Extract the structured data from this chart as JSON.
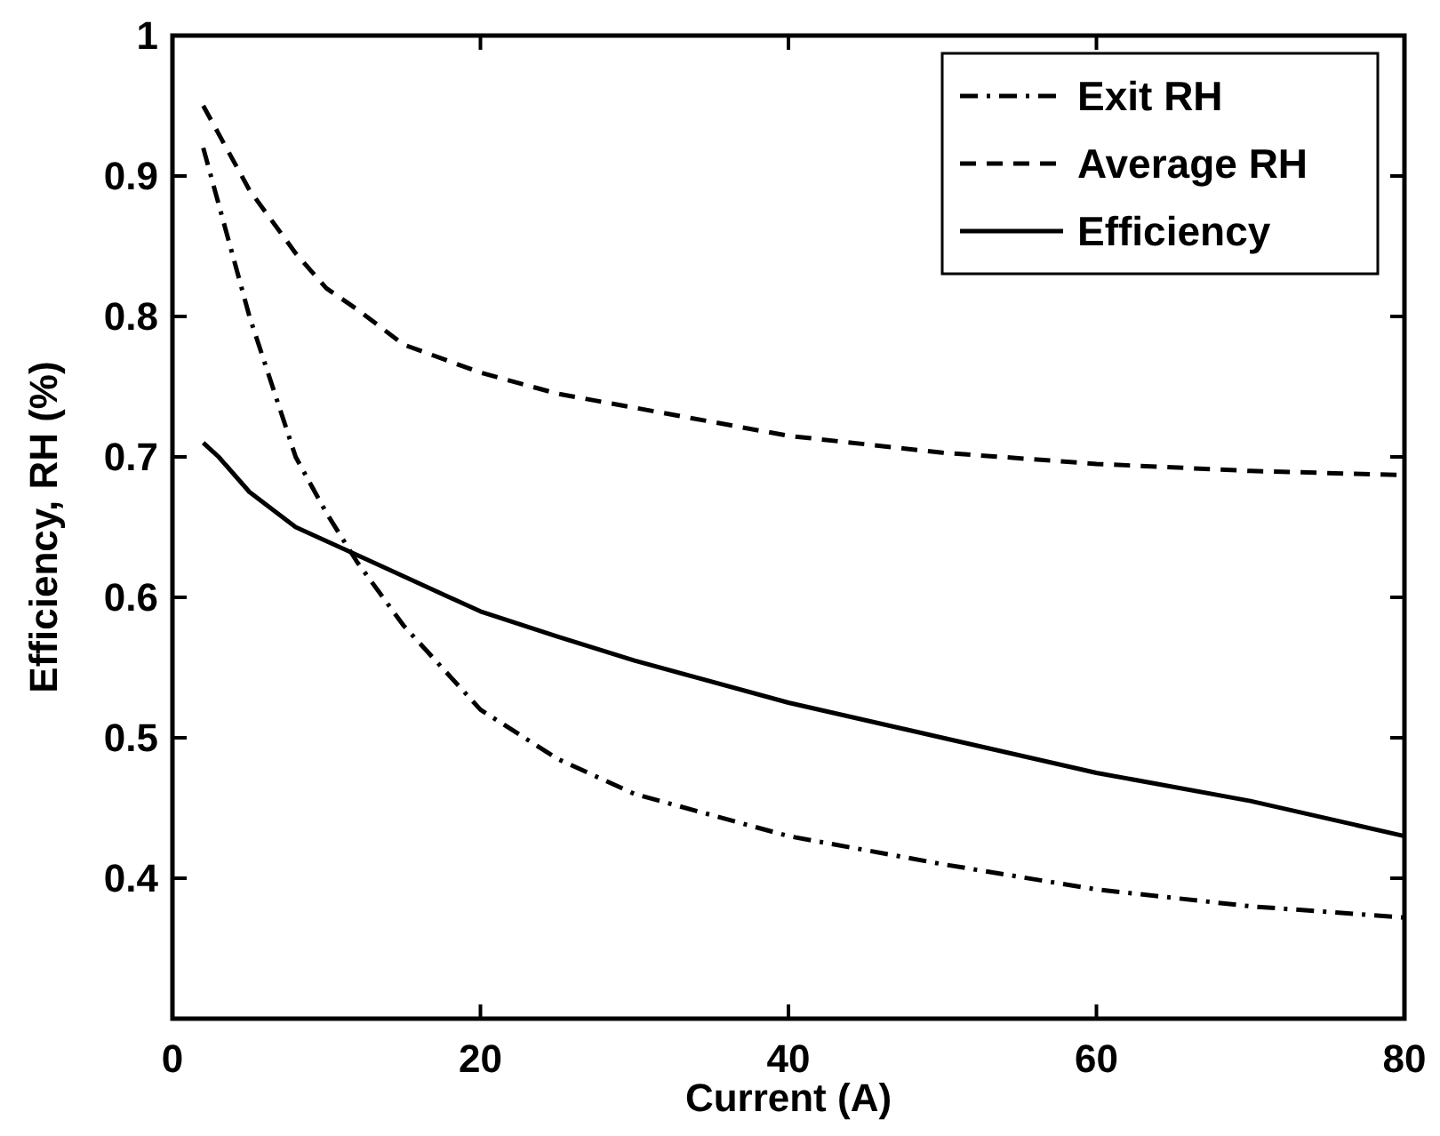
{
  "chart_data": {
    "type": "line",
    "xlabel": "Current (A)",
    "ylabel": "Efficiency, RH (%)",
    "xlim": [
      0,
      80
    ],
    "xticks": [
      0,
      20,
      40,
      60,
      80
    ],
    "ylim": [
      0.3,
      1
    ],
    "yticks": [
      0.4,
      0.5,
      0.6,
      0.7,
      0.8,
      0.9,
      1
    ],
    "legend": "top right",
    "grid": false,
    "x": [
      2,
      3,
      5,
      8,
      10,
      12,
      15,
      20,
      25,
      30,
      40,
      50,
      60,
      70,
      80
    ],
    "series": [
      {
        "name": "Exit RH",
        "color": "#000000",
        "line_style": "dashdot",
        "values": [
          0.92,
          0.88,
          0.8,
          0.7,
          0.66,
          0.625,
          0.58,
          0.52,
          0.485,
          0.46,
          0.43,
          0.41,
          0.392,
          0.38,
          0.372
        ]
      },
      {
        "name": "Average RH",
        "color": "#000000",
        "line_style": "dashed",
        "values": [
          0.95,
          0.93,
          0.89,
          0.845,
          0.82,
          0.805,
          0.78,
          0.76,
          0.745,
          0.735,
          0.715,
          0.703,
          0.695,
          0.69,
          0.687
        ]
      },
      {
        "name": "Efficiency",
        "color": "#000000",
        "line_style": "solid",
        "values": [
          0.71,
          0.7,
          0.675,
          0.65,
          0.64,
          0.63,
          0.615,
          0.59,
          0.572,
          0.555,
          0.525,
          0.5,
          0.475,
          0.455,
          0.43
        ]
      }
    ]
  }
}
